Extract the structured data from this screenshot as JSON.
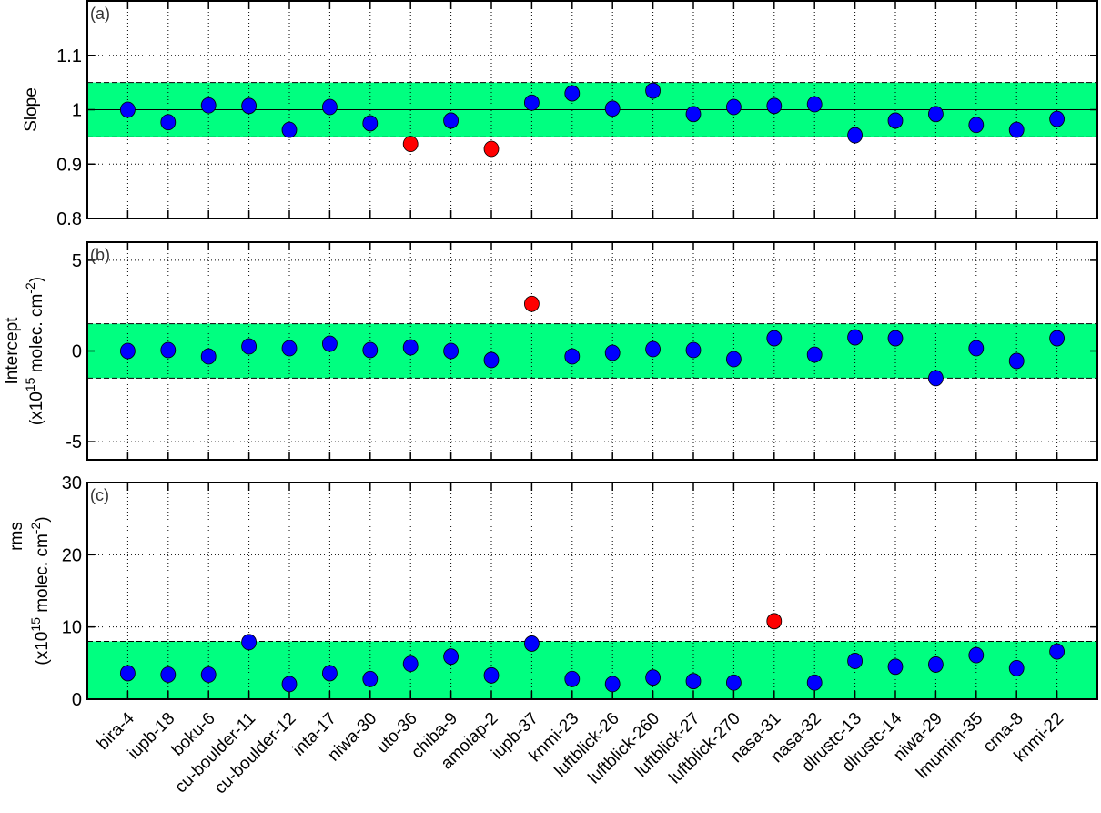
{
  "chart_data": [
    {
      "type": "scatter",
      "panel_label": "(a)",
      "ylabel": [
        "Slope"
      ],
      "ylim": [
        0.8,
        1.2
      ],
      "yticks": [
        0.8,
        0.9,
        1,
        1.1
      ],
      "ytick_labels": [
        "0.8",
        "0.9",
        "1",
        "1.1"
      ],
      "reference_line": 1,
      "band": [
        0.95,
        1.05
      ],
      "grid": true,
      "values": [
        1.0,
        0.977,
        1.008,
        1.007,
        0.963,
        1.005,
        0.975,
        0.937,
        0.98,
        0.928,
        1.013,
        1.03,
        1.002,
        1.035,
        0.992,
        1.005,
        1.007,
        1.01,
        0.953,
        0.98,
        0.992,
        0.972,
        0.963,
        0.983
      ],
      "outlier": [
        false,
        false,
        false,
        false,
        false,
        false,
        false,
        true,
        false,
        true,
        false,
        false,
        false,
        false,
        false,
        false,
        false,
        false,
        false,
        false,
        false,
        false,
        false,
        false
      ]
    },
    {
      "type": "scatter",
      "panel_label": "(b)",
      "ylabel": [
        "Intercept",
        "(x10",
        "15",
        " molec. cm",
        "-2",
        ")"
      ],
      "ylim": [
        -6,
        6
      ],
      "yticks": [
        -5,
        0,
        5
      ],
      "ytick_labels": [
        "-5",
        "0",
        "5"
      ],
      "reference_line": 0,
      "band": [
        -1.5,
        1.5
      ],
      "grid": true,
      "values": [
        0.0,
        0.05,
        -0.3,
        0.25,
        0.15,
        0.4,
        0.05,
        0.2,
        0.0,
        -0.5,
        2.6,
        -0.3,
        -0.1,
        0.1,
        0.05,
        -0.45,
        0.7,
        -0.2,
        0.75,
        0.7,
        -1.5,
        0.15,
        -0.55,
        0.7
      ],
      "outlier": [
        false,
        false,
        false,
        false,
        false,
        false,
        false,
        false,
        false,
        false,
        true,
        false,
        false,
        false,
        false,
        false,
        false,
        false,
        false,
        false,
        false,
        false,
        false,
        false
      ]
    },
    {
      "type": "scatter",
      "panel_label": "(c)",
      "ylabel": [
        "rms",
        "(x10",
        "15",
        " molec. cm",
        "-2",
        ")"
      ],
      "ylim": [
        0,
        30
      ],
      "yticks": [
        0,
        10,
        20,
        30
      ],
      "ytick_labels": [
        "0",
        "10",
        "20",
        "30"
      ],
      "reference_line": null,
      "band": [
        0,
        8
      ],
      "grid": true,
      "values": [
        3.6,
        3.4,
        3.4,
        7.9,
        2.1,
        3.6,
        2.8,
        4.9,
        5.9,
        3.3,
        7.7,
        2.8,
        2.1,
        3.0,
        2.5,
        2.3,
        10.8,
        2.3,
        5.3,
        4.5,
        4.8,
        6.1,
        4.3,
        6.6
      ],
      "outlier": [
        false,
        false,
        false,
        false,
        false,
        false,
        false,
        false,
        false,
        false,
        false,
        false,
        false,
        false,
        false,
        false,
        true,
        false,
        false,
        false,
        false,
        false,
        false,
        false
      ]
    }
  ],
  "categories": [
    "bira-4",
    "iupb-18",
    "boku-6",
    "cu-boulder-11",
    "cu-boulder-12",
    "inta-17",
    "niwa-30",
    "uto-36",
    "chiba-9",
    "amoiap-2",
    "iupb-37",
    "knmi-23",
    "luftblick-26",
    "luftblick-260",
    "luftblick-27",
    "luftblick-270",
    "nasa-31",
    "nasa-32",
    "dlrustc-13",
    "dlrustc-14",
    "niwa-29",
    "lmumim-35",
    "cma-8",
    "knmi-22"
  ],
  "colors": {
    "band": "#00ff80",
    "point": "#0000ff",
    "outlier": "#ff0000"
  }
}
